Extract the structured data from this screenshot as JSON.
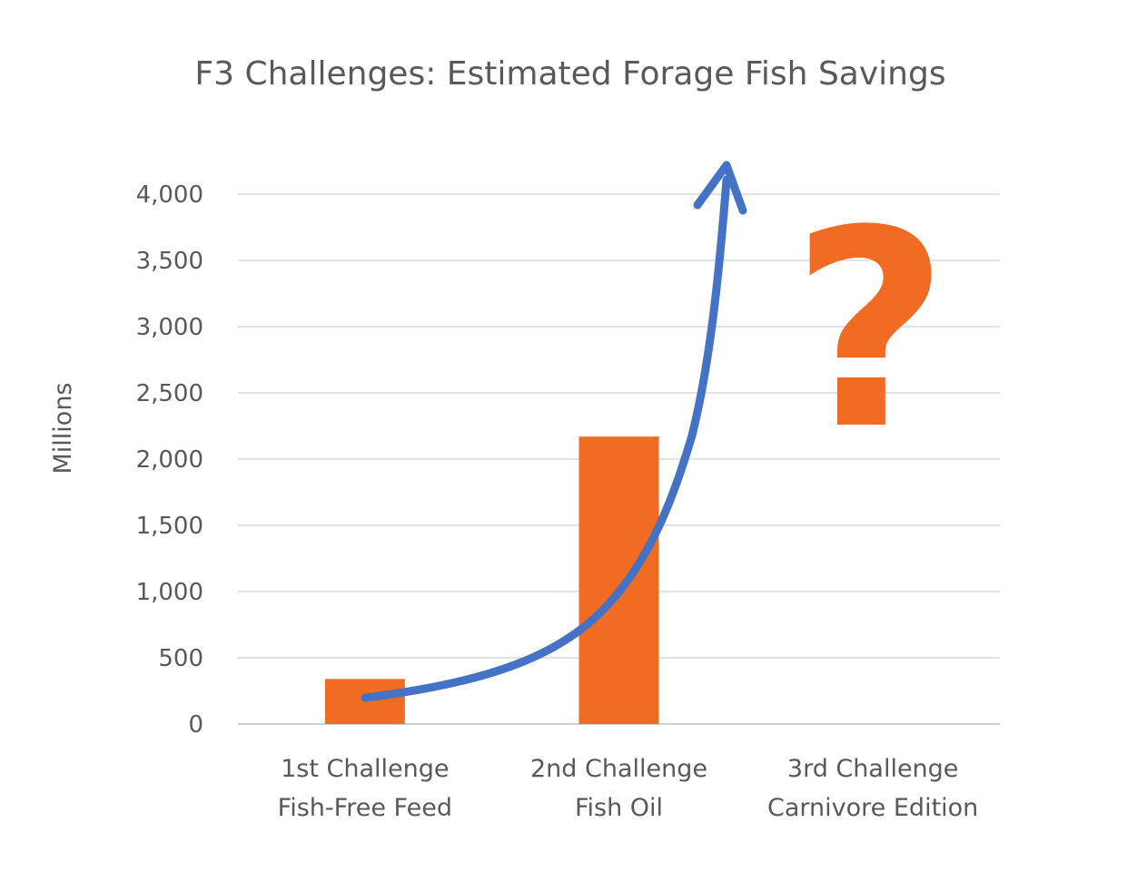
{
  "chart_data": {
    "type": "bar",
    "title": "F3 Challenges: Estimated Forage Fish Savings",
    "ylabel": "Millions",
    "xlabel": "",
    "ylim": [
      0,
      4000
    ],
    "yticks": [
      0,
      500,
      1000,
      1500,
      2000,
      2500,
      3000,
      3500,
      4000
    ],
    "ytick_labels": [
      "0",
      "500",
      "1,000",
      "1,500",
      "2,000",
      "2,500",
      "3,000",
      "3,500",
      "4,000"
    ],
    "categories": [
      [
        "1st Challenge",
        "Fish-Free Feed"
      ],
      [
        "2nd Challenge",
        "Fish Oil"
      ],
      [
        "3rd Challenge",
        "Carnivore Edition"
      ]
    ],
    "values": [
      340,
      2170,
      null
    ],
    "bar_color": "#F26B23",
    "grid": true,
    "legend": "none",
    "annotations": {
      "question_mark": "?",
      "question_mark_color": "#F26B23",
      "trend_arrow_color": "#4472C4"
    }
  }
}
